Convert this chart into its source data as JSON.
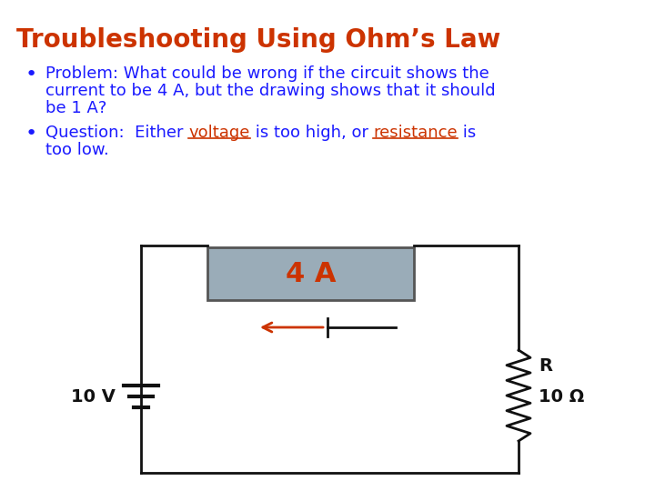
{
  "title": "Troubleshooting Using Ohm’s Law",
  "title_color": "#CC3300",
  "title_fontsize": 20,
  "background_color": "#FFFFFF",
  "bullet1_line1": "Problem: What could be wrong if the circuit shows the",
  "bullet1_line2": "current to be 4 A, but the drawing shows that it should",
  "bullet1_line3": "be 1 A?",
  "bullet2_pre": "Question:  Either ",
  "bullet2_word1": "voltage",
  "bullet2_mid": " is too high, or ",
  "bullet2_word2": "resistance",
  "bullet2_post": " is",
  "bullet2_line2": "too low.",
  "text_color": "#1a1aff",
  "highlight_color": "#CC3300",
  "bullet_color": "#333333",
  "ammeter_text": "4 A",
  "ammeter_bg": "#9aacb8",
  "ammeter_border": "#555555",
  "ammeter_text_color": "#CC3300",
  "battery_text": "10 V",
  "battery_color": "#111111",
  "resistor_label": "R",
  "resistor_value": "10 Ω",
  "resistor_color": "#111111",
  "wire_color": "#111111",
  "arrow_color": "#CC3300",
  "current_marker_color": "#111111",
  "fs_body": 13,
  "fs_title": 20,
  "fs_ammeter": 22,
  "fs_circuit": 14
}
